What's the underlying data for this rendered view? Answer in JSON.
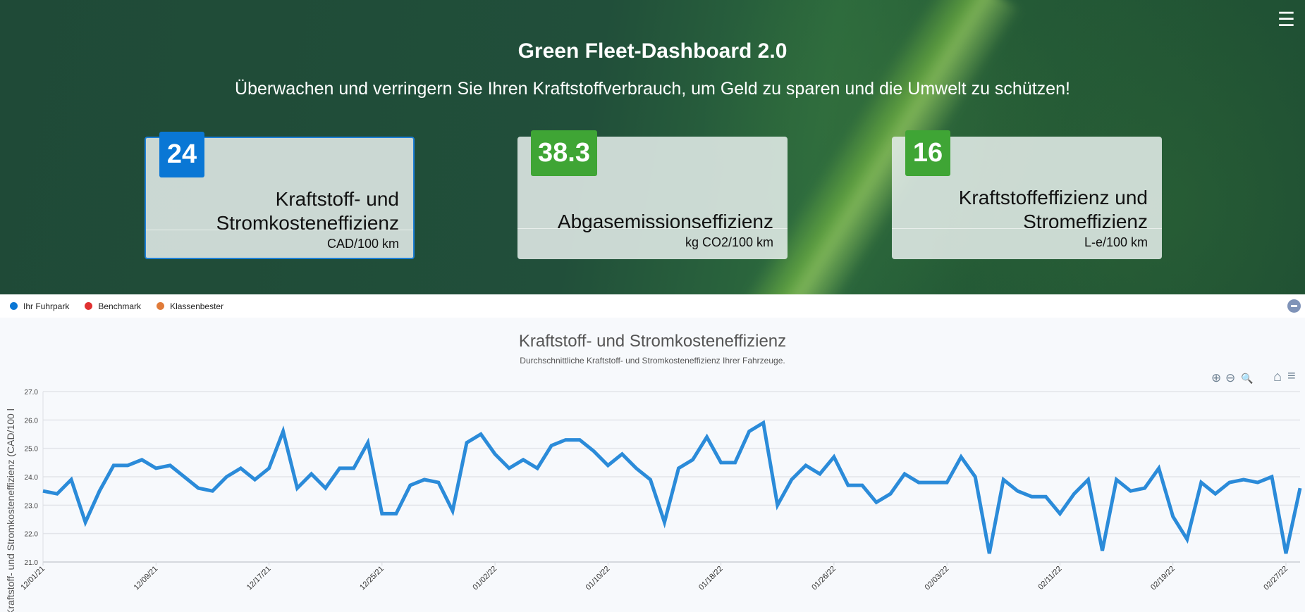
{
  "header": {
    "title": "Green Fleet-Dashboard 2.0",
    "subtitle": "Überwachen und verringern Sie Ihren Kraftstoffverbrauch, um Geld zu sparen und die Umwelt zu schützen!",
    "menu_icon": "hamburger-menu-icon"
  },
  "cards": [
    {
      "value": "24",
      "label": "Kraftstoff- und Stromkosteneffizienz",
      "unit": "CAD/100 km",
      "badge_color": "#0a77d5",
      "selected": true
    },
    {
      "value": "38.3",
      "label": "Abgasemissionseffizienz",
      "unit": "kg CO2/100 km",
      "badge_color": "#3fa535",
      "selected": false
    },
    {
      "value": "16",
      "label": "Kraftstoffeffizienz und Stromeffizienz",
      "unit": "L-e/100 km",
      "badge_color": "#3fa535",
      "selected": false
    }
  ],
  "legend": [
    {
      "label": "Ihr Fuhrpark",
      "color": "#0a77d5"
    },
    {
      "label": "Benchmark",
      "color": "#e03131"
    },
    {
      "label": "Klassenbester",
      "color": "#e07b39"
    }
  ],
  "toolbar": {
    "zoom_in": "⊕",
    "zoom_out": "⊖",
    "zoom": "🔍",
    "home": "⌂",
    "menu": "≡"
  },
  "chart_data": {
    "type": "line",
    "title": "Kraftstoff- und Stromkosteneffizienz",
    "subtitle": "Durchschnittliche Kraftstoff- und Stromkosteneffizienz Ihrer Fahrzeuge.",
    "ylabel": "Kraftstoff- und Stromkosteneffizienz (CAD/100 l",
    "xlabel": "",
    "ylim": [
      21,
      27
    ],
    "yticks": [
      "21.0",
      "22.0",
      "23.0",
      "24.0",
      "25.0",
      "26.0",
      "27.0"
    ],
    "x_start": "12/01/21",
    "xticks": [
      "12/01/21",
      "12/09/21",
      "12/17/21",
      "12/25/21",
      "01/02/22",
      "01/10/22",
      "01/18/22",
      "01/26/22",
      "02/03/22",
      "02/11/22",
      "02/19/22",
      "02/27/22"
    ],
    "grid": true,
    "series": [
      {
        "color": "#2b8bd9",
        "values": [
          23.5,
          23.4,
          23.9,
          22.4,
          23.5,
          24.4,
          24.4,
          24.6,
          24.3,
          24.4,
          24.0,
          23.6,
          23.5,
          24.0,
          24.3,
          23.9,
          24.3,
          25.6,
          23.6,
          24.1,
          23.6,
          24.3,
          24.3,
          25.2,
          22.7,
          22.7,
          23.7,
          23.9,
          23.8,
          22.8,
          25.2,
          25.5,
          24.8,
          24.3,
          24.6,
          24.3,
          25.1,
          25.3,
          25.3,
          24.9,
          24.4,
          24.8,
          24.3,
          23.9,
          22.4,
          24.3,
          24.6,
          25.4,
          24.5,
          24.5,
          25.6,
          25.9,
          23.0,
          23.9,
          24.4,
          24.1,
          24.7,
          23.7,
          23.7,
          23.1,
          23.4,
          24.1,
          23.8,
          23.8,
          23.8,
          24.7,
          24.0,
          21.3,
          23.9,
          23.5,
          23.3,
          23.3,
          22.7,
          23.4,
          23.9,
          21.4,
          23.9,
          23.5,
          23.6,
          24.3,
          22.6,
          21.8,
          23.8,
          23.4,
          23.8,
          23.9,
          23.8,
          24.0,
          21.3,
          23.6
        ]
      }
    ]
  }
}
